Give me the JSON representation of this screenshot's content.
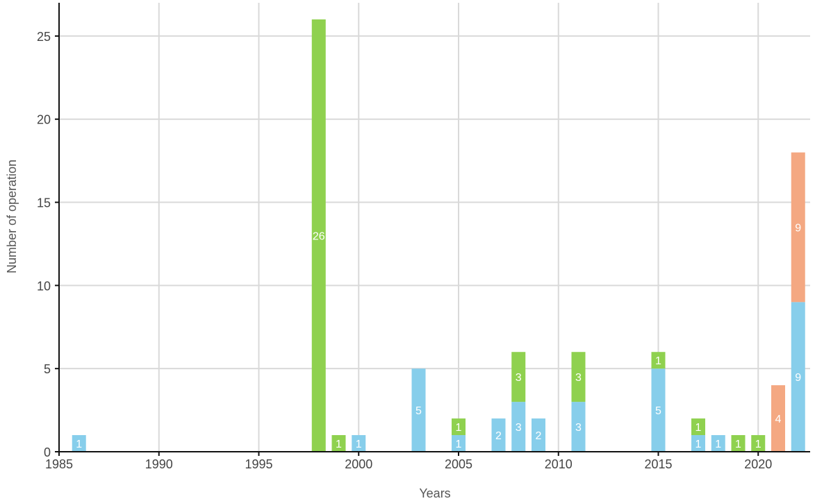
{
  "chart_data": {
    "type": "bar",
    "stacked": true,
    "title": "",
    "xlabel": "Years",
    "ylabel": "Number of operation",
    "xlim": [
      1985,
      2022.6
    ],
    "ylim": [
      0,
      27
    ],
    "xticks": [
      1985,
      1990,
      1995,
      2000,
      2005,
      2010,
      2015,
      2020
    ],
    "yticks": [
      0,
      5,
      10,
      15,
      20,
      25
    ],
    "grid": true,
    "legend": "none",
    "colors": {
      "blue": "#87ceeb",
      "green": "#8fd14f",
      "orange": "#f4a882"
    },
    "bars": [
      {
        "x": 1986,
        "segments": [
          {
            "color": "blue",
            "value": 1,
            "label": "1"
          }
        ]
      },
      {
        "x": 1998,
        "segments": [
          {
            "color": "green",
            "value": 26,
            "label": "26"
          }
        ]
      },
      {
        "x": 1999,
        "segments": [
          {
            "color": "green",
            "value": 1,
            "label": "1"
          }
        ]
      },
      {
        "x": 2000,
        "segments": [
          {
            "color": "blue",
            "value": 1,
            "label": "1"
          }
        ]
      },
      {
        "x": 2003,
        "segments": [
          {
            "color": "blue",
            "value": 5,
            "label": "5"
          }
        ]
      },
      {
        "x": 2005,
        "segments": [
          {
            "color": "blue",
            "value": 1,
            "label": "1"
          },
          {
            "color": "green",
            "value": 1,
            "label": "1"
          }
        ]
      },
      {
        "x": 2007,
        "segments": [
          {
            "color": "blue",
            "value": 2,
            "label": "2"
          }
        ]
      },
      {
        "x": 2008,
        "segments": [
          {
            "color": "blue",
            "value": 3,
            "label": "3"
          },
          {
            "color": "green",
            "value": 3,
            "label": "3"
          }
        ]
      },
      {
        "x": 2009,
        "segments": [
          {
            "color": "blue",
            "value": 2,
            "label": "2"
          }
        ]
      },
      {
        "x": 2011,
        "segments": [
          {
            "color": "blue",
            "value": 3,
            "label": "3"
          },
          {
            "color": "green",
            "value": 3,
            "label": "3"
          }
        ]
      },
      {
        "x": 2015,
        "segments": [
          {
            "color": "blue",
            "value": 5,
            "label": "5"
          },
          {
            "color": "green",
            "value": 1,
            "label": "1"
          }
        ]
      },
      {
        "x": 2017,
        "segments": [
          {
            "color": "blue",
            "value": 1,
            "label": "1"
          },
          {
            "color": "green",
            "value": 1,
            "label": "1"
          }
        ]
      },
      {
        "x": 2018,
        "segments": [
          {
            "color": "blue",
            "value": 1,
            "label": "1"
          }
        ]
      },
      {
        "x": 2019,
        "segments": [
          {
            "color": "green",
            "value": 1,
            "label": "1"
          }
        ]
      },
      {
        "x": 2020,
        "segments": [
          {
            "color": "green",
            "value": 1,
            "label": "1"
          }
        ]
      },
      {
        "x": 2021,
        "segments": [
          {
            "color": "orange",
            "value": 4,
            "label": "4"
          }
        ]
      },
      {
        "x": 2022,
        "segments": [
          {
            "color": "blue",
            "value": 9,
            "label": "9"
          },
          {
            "color": "orange",
            "value": 9,
            "label": "9"
          }
        ]
      }
    ]
  }
}
